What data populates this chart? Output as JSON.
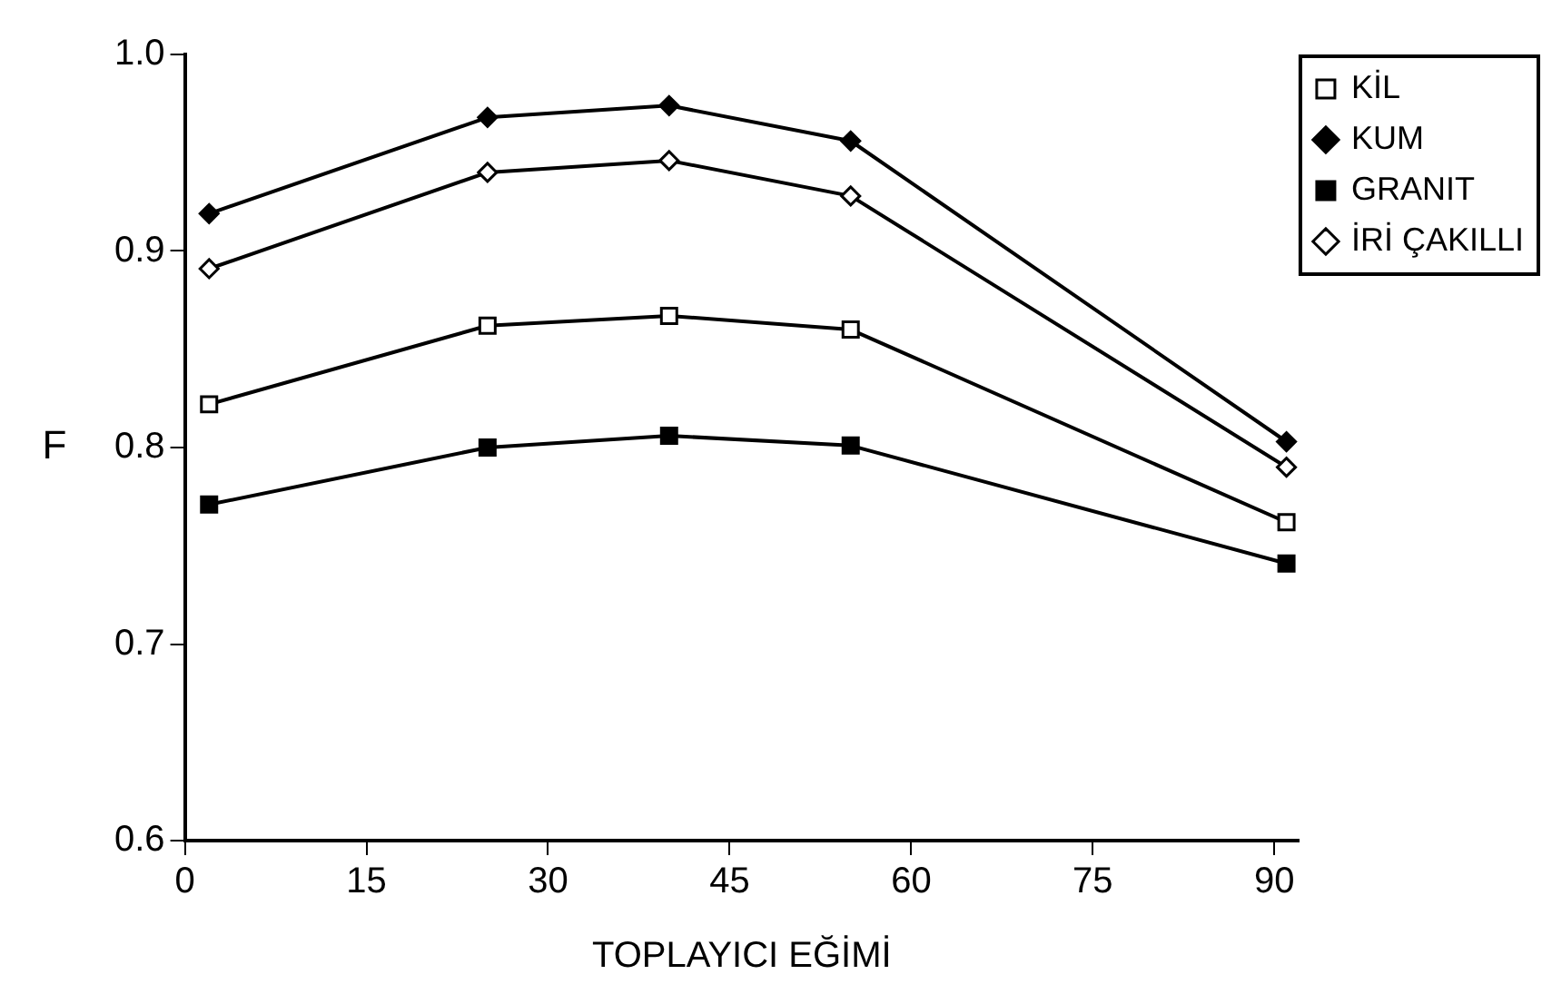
{
  "chart_data": {
    "type": "line",
    "xlabel": "TOPLAYICI EĞİMİ",
    "ylabel": "F",
    "x": [
      2,
      25,
      40,
      55,
      91
    ],
    "xlim": [
      0,
      92
    ],
    "xticks": [
      0,
      15,
      30,
      45,
      60,
      75,
      90
    ],
    "ylim": [
      0.6,
      1.0
    ],
    "yticks": [
      {
        "value": 0.6,
        "label": "0.6"
      },
      {
        "value": 0.7,
        "label": "0.7"
      },
      {
        "value": 0.8,
        "label": "0.8"
      },
      {
        "value": 0.9,
        "label": "0.9"
      },
      {
        "value": 1.0,
        "label": "1.0"
      }
    ],
    "grid": false,
    "legend": "top right",
    "line_style": "solid",
    "series": [
      {
        "name": "KİL",
        "color": "#000000",
        "marker": "square",
        "colors": [
          "#ffffff",
          "#ffffff",
          "#ffffff",
          "#ffffff",
          "#ffffff"
        ],
        "values": [
          0.822,
          0.862,
          0.867,
          0.86,
          0.762
        ]
      },
      {
        "name": "KUM",
        "color": "#000000",
        "marker": "diamond",
        "colors": [
          "#000000",
          "#000000",
          "#000000",
          "#000000",
          "#000000"
        ],
        "values": [
          0.919,
          0.968,
          0.974,
          0.956,
          0.803
        ]
      },
      {
        "name": "GRANIT",
        "color": "#000000",
        "marker": "square",
        "colors": [
          "#000000",
          "#000000",
          "#000000",
          "#000000",
          "#000000"
        ],
        "values": [
          0.771,
          0.8,
          0.806,
          0.801,
          0.741
        ]
      },
      {
        "name": "İRİ ÇAKILLI",
        "color": "#000000",
        "marker": "diamond",
        "colors": [
          "#ffffff",
          "#ffffff",
          "#ffffff",
          "#ffffff",
          "#ffffff"
        ],
        "values": [
          0.891,
          0.94,
          0.946,
          0.928,
          0.79
        ]
      }
    ]
  }
}
